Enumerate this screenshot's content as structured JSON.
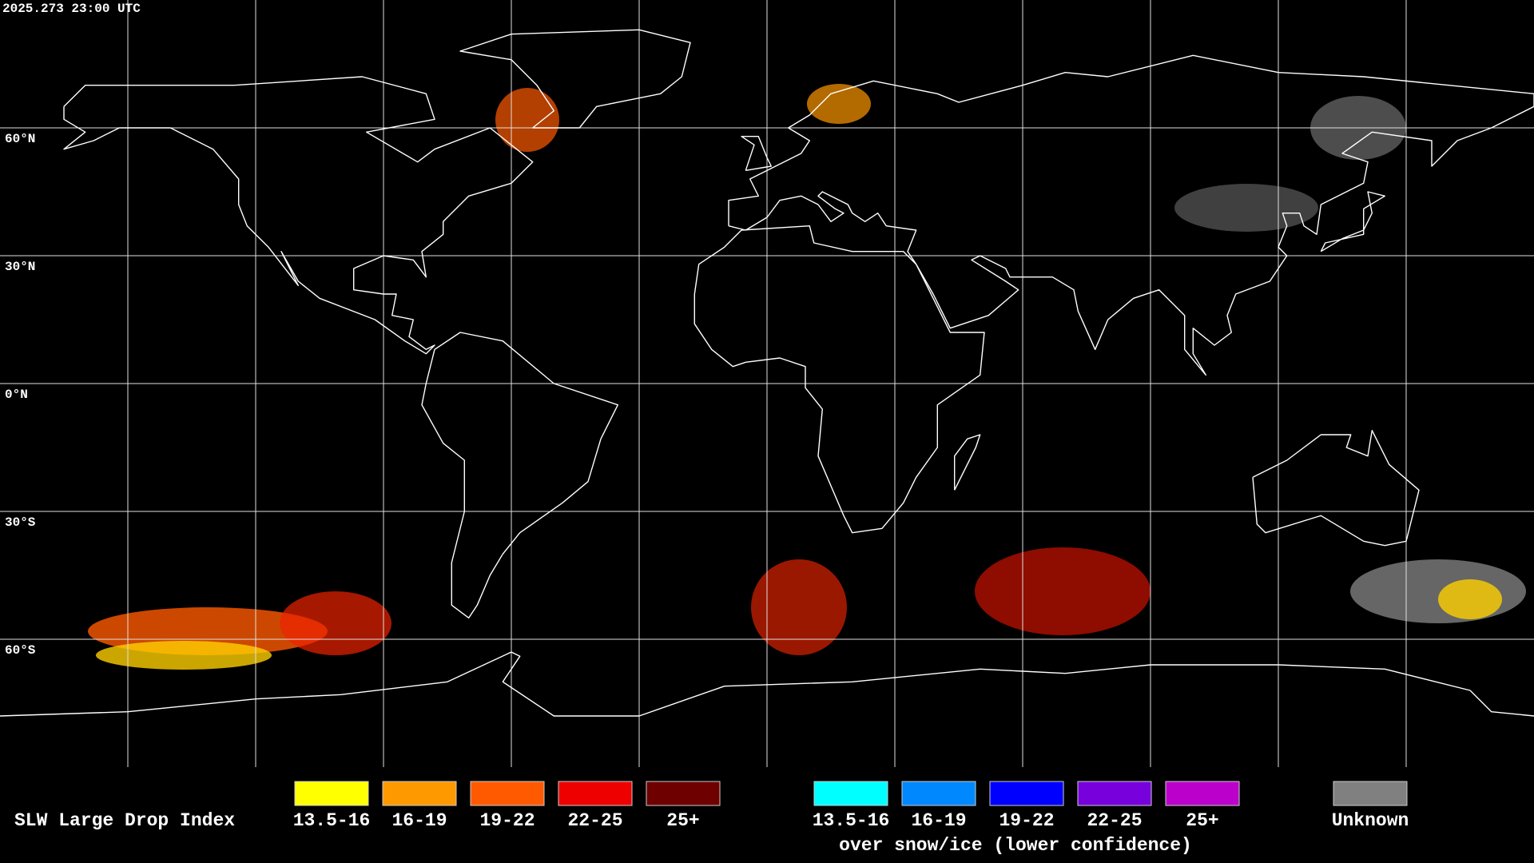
{
  "header": {
    "timestamp": "2025.273 23:00 UTC"
  },
  "map": {
    "latitude_labels": [
      "60°N",
      "30°N",
      "0°N",
      "30°S",
      "60°S"
    ]
  },
  "legend": {
    "title": "SLW Large Drop Index",
    "normal": [
      {
        "label": "13.5-16",
        "color": "#ffff00"
      },
      {
        "label": "16-19",
        "color": "#ff9900"
      },
      {
        "label": "19-22",
        "color": "#ff5a00"
      },
      {
        "label": "22-25",
        "color": "#ee0000"
      },
      {
        "label": "25+",
        "color": "#6e0000"
      }
    ],
    "snow_ice": [
      {
        "label": "13.5-16",
        "color": "#00ffff"
      },
      {
        "label": "16-19",
        "color": "#0088ff"
      },
      {
        "label": "19-22",
        "color": "#0000ff"
      },
      {
        "label": "22-25",
        "color": "#7700dd"
      },
      {
        "label": "25+",
        "color": "#bb00cc"
      }
    ],
    "snow_ice_caption": "over snow/ice (lower confidence)",
    "unknown": {
      "label": "Unknown",
      "color": "#808080"
    }
  }
}
